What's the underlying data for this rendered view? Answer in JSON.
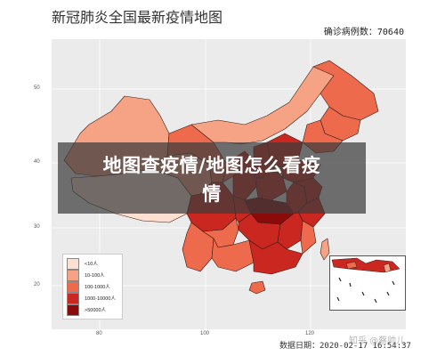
{
  "map": {
    "title": "新冠肺炎全国最新疫情地图",
    "confirmed_label": "确诊病例数：70640",
    "date_label": "数据日期：2020-02-17 16:54:37",
    "y_ticks": [
      "50",
      "40",
      "30",
      "20"
    ],
    "x_ticks": [
      "80",
      "100",
      "120"
    ]
  },
  "legend": {
    "items": [
      {
        "label": "<10人",
        "color": "#fde0d2"
      },
      {
        "label": "10-100人",
        "color": "#f6a385"
      },
      {
        "label": "100-1000人",
        "color": "#ee6a4c"
      },
      {
        "label": "1000-10000人",
        "color": "#c9271f"
      },
      {
        "label": ">50000人",
        "color": "#8b0b0b"
      }
    ]
  },
  "banner": {
    "line1": "地图查疫情/地图怎么看疫",
    "line2": "情"
  },
  "watermark": "知乎 @蔡帅儿"
}
